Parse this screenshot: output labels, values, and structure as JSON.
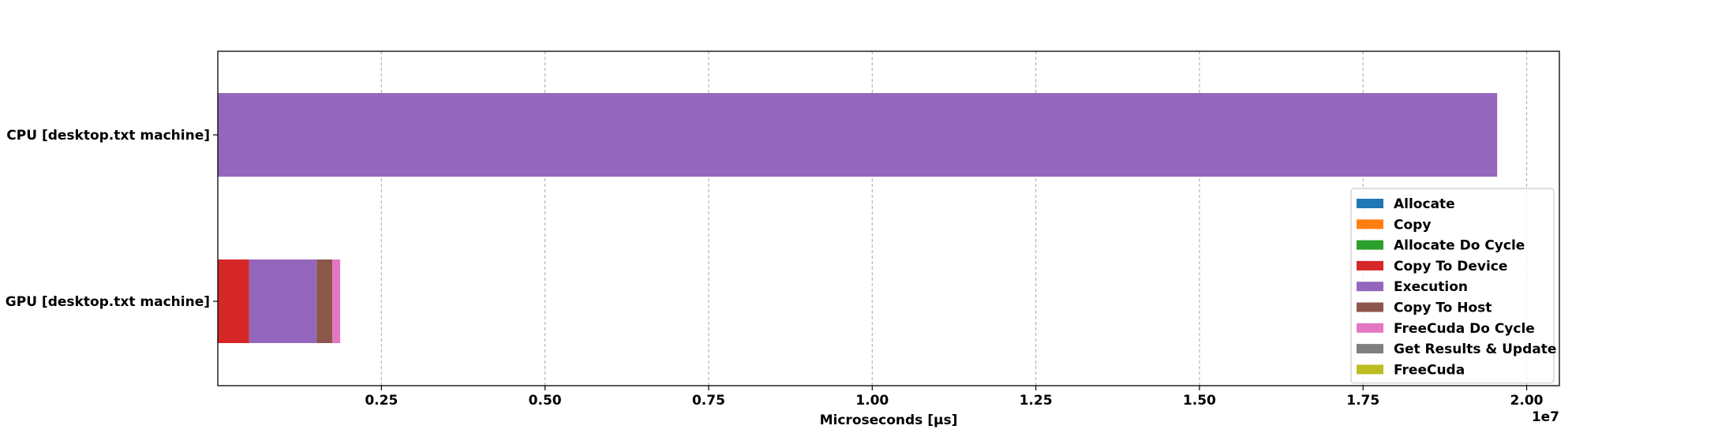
{
  "chart_data": {
    "type": "bar",
    "orientation": "horizontal",
    "stacked": true,
    "categories": [
      "CPU [desktop.txt machine]",
      "GPU [desktop.txt machine]"
    ],
    "xlabel": "Microseconds [µs]",
    "x_offset_label": "1e7",
    "xlim": [
      0,
      20500000
    ],
    "x_ticks": [
      2500000,
      5000000,
      7500000,
      10000000,
      12500000,
      15000000,
      17500000,
      20000000
    ],
    "x_tick_labels": [
      "0.25",
      "0.50",
      "0.75",
      "1.00",
      "1.25",
      "1.50",
      "1.75",
      "2.00"
    ],
    "grid": "x-dashed",
    "legend_position": "lower-right",
    "series": [
      {
        "name": "Allocate",
        "color": "#1f77b4",
        "values": [
          0,
          0
        ]
      },
      {
        "name": "Copy",
        "color": "#ff7f0e",
        "values": [
          0,
          0
        ]
      },
      {
        "name": "Allocate Do Cycle",
        "color": "#2ca02c",
        "values": [
          0,
          0
        ]
      },
      {
        "name": "Copy To Device",
        "color": "#d62728",
        "values": [
          0,
          480000
        ]
      },
      {
        "name": "Execution",
        "color": "#9467bd",
        "values": [
          19550000,
          1030000
        ]
      },
      {
        "name": "Copy To Host",
        "color": "#8c564b",
        "values": [
          0,
          240000
        ]
      },
      {
        "name": "FreeCuda Do Cycle",
        "color": "#e377c2",
        "values": [
          0,
          120000
        ]
      },
      {
        "name": "Get Results & Update",
        "color": "#7f7f7f",
        "values": [
          0,
          0
        ]
      },
      {
        "name": "FreeCuda",
        "color": "#bcbd22",
        "values": [
          0,
          0
        ]
      }
    ]
  }
}
